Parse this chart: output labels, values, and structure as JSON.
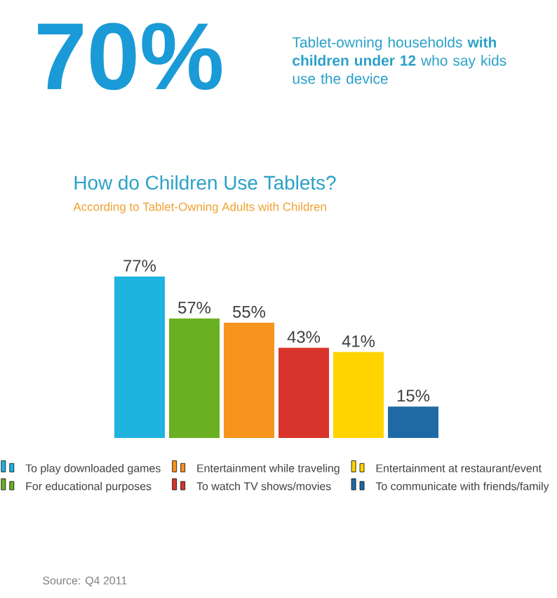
{
  "chart_data": {
    "type": "bar",
    "title": "How do Children Use Tablets?",
    "subtitle": "According to Tablet-Owning Adults with Children",
    "annotations": [
      "70%",
      "Tablet-owning households **with children under 12** who say kids use the device",
      "Source: Q4 2011"
    ],
    "categories": [
      null
    ],
    "series": [
      {
        "name": "To play downloaded games",
        "color": "#1fb3e0",
        "values": [
          77
        ],
        "value_labels": [
          "77%"
        ]
      },
      {
        "name": "For educational purposes",
        "color": "#6ab023",
        "values": [
          57
        ],
        "value_labels": [
          "57%"
        ]
      },
      {
        "name": "Entertainment while traveling",
        "color": "#f7941d",
        "values": [
          55
        ],
        "value_labels": [
          "55%"
        ]
      },
      {
        "name": "To watch TV shows/movies",
        "color": "#d9342b",
        "values": [
          43
        ],
        "value_labels": [
          "43%"
        ]
      },
      {
        "name": "Entertainment at restaurant/event",
        "color": "#ffd400",
        "values": [
          41
        ],
        "value_labels": [
          "41%"
        ]
      },
      {
        "name": "To communicate with friends/family",
        "color": "#1f6aa5",
        "values": [
          15
        ],
        "value_labels": [
          "15%"
        ]
      }
    ],
    "legend": "bottom"
  }
}
